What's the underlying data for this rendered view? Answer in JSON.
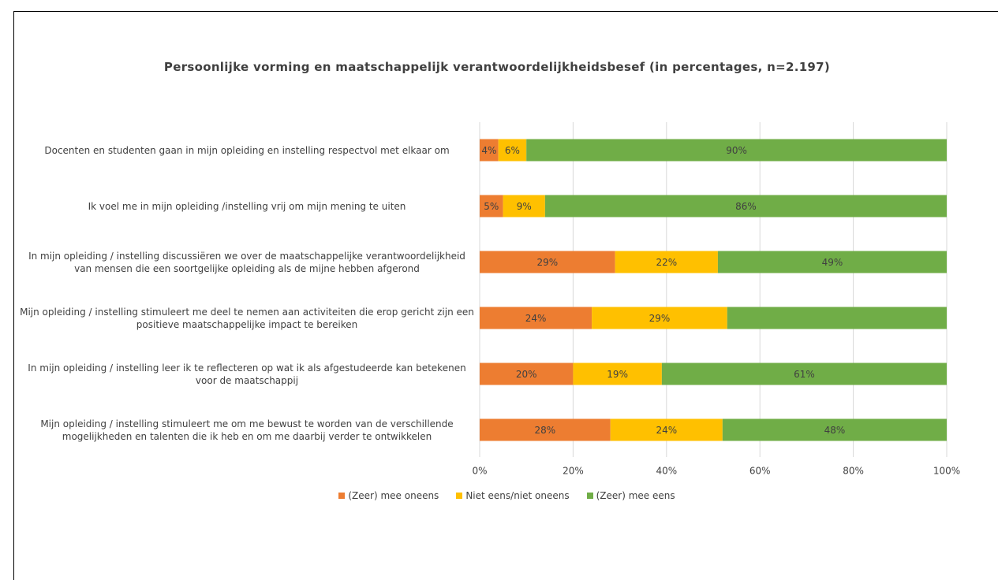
{
  "chart_data": {
    "type": "stacked_barh",
    "title": "Persoonlijke vorming en maatschappelijk verantwoordelijkheidsbesef (in percentages, n=2.197)",
    "categories": [
      "Docenten en studenten gaan in mijn opleiding en instelling respectvol met elkaar om",
      "Ik voel me in mijn opleiding /instelling vrij om mijn mening te uiten",
      "In mijn opleiding / instelling discussiëren we over de maatschappelijke verantwoordelijkheid van mensen die een soortgelijke opleiding als de mijne hebben afgerond",
      "Mijn opleiding / instelling stimuleert me deel te nemen aan activiteiten die erop gericht zijn een positieve maatschappelijke impact te bereiken",
      "In mijn opleiding / instelling leer ik te reflecteren op wat ik als afgestudeerde kan betekenen voor de maatschappij",
      "Mijn opleiding / instelling stimuleert me om me bewust te worden van de verschillende mogelijkheden en talenten die ik heb en om me daarbij verder te ontwikkelen"
    ],
    "series": [
      {
        "name": "(Zeer) mee oneens",
        "color": "#ed7d31",
        "values": [
          4,
          5,
          29,
          24,
          20,
          28
        ],
        "value_labels": [
          "4%",
          "5%",
          "29%",
          "24%",
          "20%",
          "28%"
        ]
      },
      {
        "name": "Niet eens/niet oneens",
        "color": "#ffc000",
        "values": [
          6,
          9,
          22,
          29,
          19,
          24
        ],
        "value_labels": [
          "6%",
          "9%",
          "22%",
          "29%",
          "19%",
          "24%"
        ]
      },
      {
        "name": "(Zeer) mee eens",
        "color": "#70ad47",
        "values": [
          90,
          86,
          49,
          47,
          61,
          48
        ],
        "value_labels": [
          "90%",
          "86%",
          "49%",
          null,
          "61%",
          "48%"
        ]
      }
    ],
    "xlim": [
      0,
      100
    ],
    "xticks": [
      {
        "value": 0,
        "label": "0%"
      },
      {
        "value": 20,
        "label": "20%"
      },
      {
        "value": 40,
        "label": "40%"
      },
      {
        "value": 60,
        "label": "60%"
      },
      {
        "value": 80,
        "label": "80%"
      },
      {
        "value": 100,
        "label": "100%"
      }
    ],
    "grid": true,
    "legend": "bottom"
  }
}
